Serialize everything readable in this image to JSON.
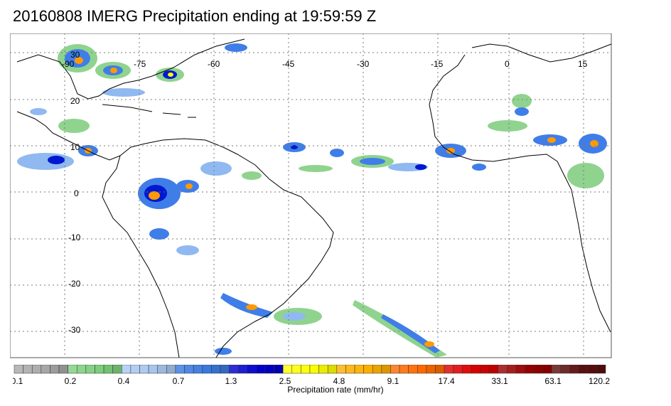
{
  "title": "20160808 IMERG Precipitation ending at 19:59:59 Z",
  "map": {
    "lon_range": [
      -100,
      35
    ],
    "lat_range": [
      -36,
      36
    ],
    "lon_ticks": [
      -90,
      -75,
      -60,
      -45,
      -30,
      -15,
      0,
      15
    ],
    "lat_ticks": [
      30,
      20,
      10,
      0,
      -10,
      -20,
      -30
    ],
    "lon_labels": [
      "-90",
      "-75",
      "-60",
      "-45",
      "-30",
      "-15",
      "0",
      "15"
    ],
    "lat_labels": [
      "30",
      "20",
      "10",
      "0",
      "-10",
      "-20",
      "-30"
    ],
    "grid": true
  },
  "colorbar": {
    "title": "Precipitation rate (mm/hr)",
    "tick_labels": [
      "0.1",
      "0.2",
      "0.4",
      "0.7",
      "1.3",
      "2.5",
      "4.8",
      "9.1",
      "17.4",
      "33.1",
      "63.1",
      "120.2"
    ],
    "group_colors": [
      "#a9a9a9",
      "#7ed07e",
      "#a8c8f0",
      "#3a7ae0",
      "#0000cc",
      "#ffff00",
      "#ffb000",
      "#ff6a00",
      "#dd0000",
      "#990000",
      "#5c0e0e"
    ],
    "segments_per_group": 6
  },
  "colors": {
    "light_green": "#8fd38f",
    "light_blue": "#8fb9f0",
    "mid_blue": "#3f7ee8",
    "dark_blue": "#0018d0",
    "yellow": "#ffff00",
    "orange": "#ff9a00",
    "coast": "#000000"
  }
}
